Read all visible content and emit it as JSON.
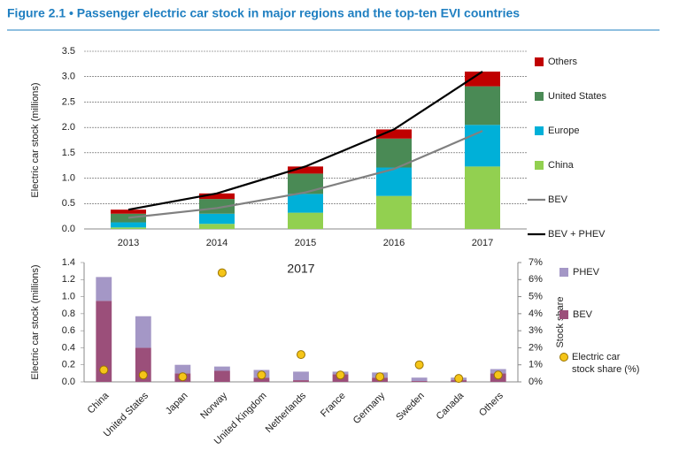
{
  "chart_data": [
    {
      "type": "bar",
      "stacked": true,
      "title": "Figure 2.1 • Passenger electric car stock in major regions and the top-ten EVI countries",
      "y_label": "Electric car stock (millions)",
      "categories": [
        "2013",
        "2014",
        "2015",
        "2016",
        "2017"
      ],
      "series": [
        {
          "name": "China",
          "color": "#92d050",
          "values": [
            0.03,
            0.1,
            0.32,
            0.65,
            1.23
          ]
        },
        {
          "name": "Europe",
          "color": "#00b0d8",
          "values": [
            0.1,
            0.2,
            0.37,
            0.56,
            0.82
          ]
        },
        {
          "name": "United States",
          "color": "#4a8a55",
          "values": [
            0.17,
            0.29,
            0.4,
            0.57,
            0.76
          ]
        },
        {
          "name": "Others",
          "color": "#c00000",
          "values": [
            0.08,
            0.11,
            0.14,
            0.18,
            0.29
          ]
        },
        {
          "name": "BEV",
          "type": "line",
          "color": "#808080",
          "values": [
            0.22,
            0.41,
            0.72,
            1.18,
            1.93
          ]
        },
        {
          "name": "BEV + PHEV",
          "type": "line",
          "color": "#000000",
          "values": [
            0.38,
            0.7,
            1.23,
            1.96,
            3.1
          ]
        }
      ],
      "ylim": [
        0,
        3.5
      ],
      "yticks": [
        {
          "value": 0,
          "label": "0.0"
        },
        0.5,
        {
          "value": 1,
          "label": "1.0"
        },
        1.5,
        {
          "value": 2,
          "label": "2.0"
        },
        2.5,
        {
          "value": 3,
          "label": "3.0"
        },
        3.5
      ],
      "grid": true
    },
    {
      "type": "bar",
      "stacked": true,
      "annotation": "2017",
      "y_label": "Electric car stock (millions)",
      "y2_label": "Stock share",
      "categories": [
        "China",
        "United States",
        "Japan",
        "Norway",
        "United Kingdom",
        "Netherlands",
        "France",
        "Germany",
        "Sweden",
        "Canada",
        "Others"
      ],
      "series": [
        {
          "name": "BEV",
          "color": "#9b4f7a",
          "values": [
            0.95,
            0.4,
            0.1,
            0.13,
            0.05,
            0.02,
            0.09,
            0.05,
            0.01,
            0.02,
            0.1
          ]
        },
        {
          "name": "PHEV",
          "color": "#a497c6",
          "values": [
            0.28,
            0.37,
            0.1,
            0.05,
            0.09,
            0.1,
            0.03,
            0.06,
            0.04,
            0.03,
            0.05
          ]
        },
        {
          "name": "Electric car stock share (%)",
          "type": "scatter",
          "axis": "y2",
          "color": "#f5c518",
          "values": [
            0.7,
            0.4,
            0.3,
            6.4,
            0.4,
            1.6,
            0.4,
            0.3,
            1.0,
            0.2,
            0.4
          ]
        }
      ],
      "ylim": [
        0,
        1.4
      ],
      "yticks": [
        {
          "value": 0,
          "label": "0.0"
        },
        0.2,
        0.4,
        0.6,
        0.8,
        {
          "value": 1,
          "label": "1.0"
        },
        1.2,
        1.4
      ],
      "y2lim": [
        0,
        7
      ],
      "y2ticks": [
        {
          "value": 0,
          "label": "0%"
        },
        {
          "value": 1,
          "label": "1%"
        },
        {
          "value": 2,
          "label": "2%"
        },
        {
          "value": 3,
          "label": "3%"
        },
        {
          "value": 4,
          "label": "4%"
        },
        {
          "value": 5,
          "label": "5%"
        },
        {
          "value": 6,
          "label": "6%"
        },
        {
          "value": 7,
          "label": "7%"
        }
      ],
      "grid": false
    }
  ]
}
